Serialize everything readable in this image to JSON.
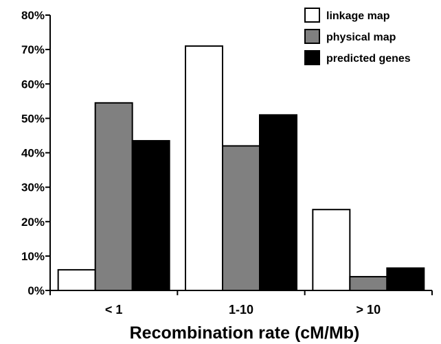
{
  "chart_data": {
    "type": "bar",
    "categories": [
      "< 1",
      "1-10",
      "> 10"
    ],
    "series": [
      {
        "name": "linkage map",
        "values": [
          6,
          71,
          23.5
        ],
        "color": "#ffffff"
      },
      {
        "name": "physical map",
        "values": [
          54.5,
          42,
          4
        ],
        "color": "#808080"
      },
      {
        "name": "predicted genes",
        "values": [
          43.5,
          51,
          6.5
        ],
        "color": "#000000"
      }
    ],
    "xlabel": "Recombination rate (cM/Mb)",
    "ylabel": "",
    "ylim": [
      0,
      80
    ],
    "yticks": [
      "0%",
      "10%",
      "20%",
      "30%",
      "40%",
      "50%",
      "60%",
      "70%",
      "80%"
    ],
    "grid": false,
    "legend_position": "top-right"
  }
}
